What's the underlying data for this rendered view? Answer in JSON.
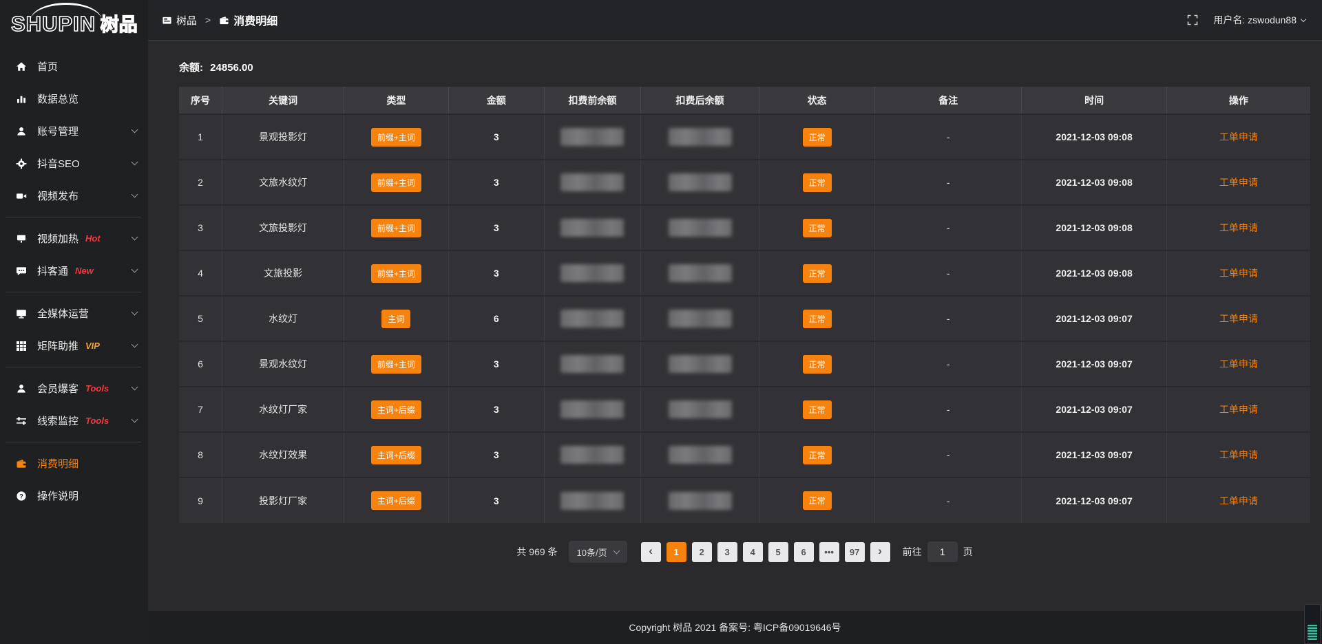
{
  "app": {
    "logo_en": "SHUPIN",
    "logo_cn": "树品"
  },
  "topbar": {
    "breadcrumb_root": "树品",
    "breadcrumb_sep": ">",
    "breadcrumb_current": "消费明细",
    "username_label": "用户名:",
    "username": "zswodun88"
  },
  "sidebar": {
    "items": [
      {
        "key": "home",
        "icon": "home-icon",
        "label": "首页"
      },
      {
        "key": "data-overview",
        "icon": "chart-icon",
        "label": "数据总览"
      },
      {
        "key": "account-manage",
        "icon": "user-icon",
        "label": "账号管理",
        "chevron": true
      },
      {
        "key": "douyin-seo",
        "icon": "gear-icon",
        "label": "抖音SEO",
        "chevron": true
      },
      {
        "key": "video-publish",
        "icon": "video-icon",
        "label": "视频发布",
        "chevron": true,
        "divider_after": true
      },
      {
        "key": "video-heat",
        "icon": "heat-icon",
        "label": "视频加热",
        "tag": "Hot",
        "tag_color": "#f5383d",
        "chevron": true
      },
      {
        "key": "douketong",
        "icon": "chat-icon",
        "label": "抖客通",
        "tag": "New",
        "tag_color": "#f5383d",
        "chevron": true,
        "divider_after": true
      },
      {
        "key": "all-media",
        "icon": "monitor-icon",
        "label": "全媒体运营",
        "chevron": true
      },
      {
        "key": "matrix-boost",
        "icon": "grid-icon",
        "label": "矩阵助推",
        "tag": "VIP",
        "tag_color": "#f0a43c",
        "chevron": true,
        "divider_after": true
      },
      {
        "key": "member-burst",
        "icon": "member-icon",
        "label": "会员爆客",
        "tag": "Tools",
        "tag_color": "#f5383d",
        "chevron": true
      },
      {
        "key": "lead-monitor",
        "icon": "sliders-icon",
        "label": "线索监控",
        "tag": "Tools",
        "tag_color": "#f5383d",
        "chevron": true,
        "divider_after": true
      },
      {
        "key": "consume-detail",
        "icon": "wallet-icon",
        "label": "消费明细",
        "active": true
      },
      {
        "key": "help",
        "icon": "question-icon",
        "label": "操作说明"
      }
    ]
  },
  "balance": {
    "label": "余额:",
    "value": "24856.00"
  },
  "table": {
    "headers": [
      "序号",
      "关键词",
      "类型",
      "金额",
      "扣费前余额",
      "扣费后余额",
      "状态",
      "备注",
      "时间",
      "操作"
    ],
    "rows": [
      {
        "seq": "1",
        "keyword": "景观投影灯",
        "type": "前缀+主词",
        "amount": "3",
        "status": "正常",
        "remark": "-",
        "time": "2021-12-03 09:08",
        "action": "工单申请"
      },
      {
        "seq": "2",
        "keyword": "文旅水纹灯",
        "type": "前缀+主词",
        "amount": "3",
        "status": "正常",
        "remark": "-",
        "time": "2021-12-03 09:08",
        "action": "工单申请"
      },
      {
        "seq": "3",
        "keyword": "文旅投影灯",
        "type": "前缀+主词",
        "amount": "3",
        "status": "正常",
        "remark": "-",
        "time": "2021-12-03 09:08",
        "action": "工单申请"
      },
      {
        "seq": "4",
        "keyword": "文旅投影",
        "type": "前缀+主词",
        "amount": "3",
        "status": "正常",
        "remark": "-",
        "time": "2021-12-03 09:08",
        "action": "工单申请"
      },
      {
        "seq": "5",
        "keyword": "水纹灯",
        "type": "主词",
        "amount": "6",
        "status": "正常",
        "remark": "-",
        "time": "2021-12-03 09:07",
        "action": "工单申请"
      },
      {
        "seq": "6",
        "keyword": "景观水纹灯",
        "type": "前缀+主词",
        "amount": "3",
        "status": "正常",
        "remark": "-",
        "time": "2021-12-03 09:07",
        "action": "工单申请"
      },
      {
        "seq": "7",
        "keyword": "水纹灯厂家",
        "type": "主词+后缀",
        "amount": "3",
        "status": "正常",
        "remark": "-",
        "time": "2021-12-03 09:07",
        "action": "工单申请"
      },
      {
        "seq": "8",
        "keyword": "水纹灯效果",
        "type": "主词+后缀",
        "amount": "3",
        "status": "正常",
        "remark": "-",
        "time": "2021-12-03 09:07",
        "action": "工单申请"
      },
      {
        "seq": "9",
        "keyword": "投影灯厂家",
        "type": "主词+后缀",
        "amount": "3",
        "status": "正常",
        "remark": "-",
        "time": "2021-12-03 09:07",
        "action": "工单申请"
      }
    ]
  },
  "pagination": {
    "total_label": "共 969 条",
    "page_size_label": "10条/页",
    "prev_label": "‹",
    "next_label": "›",
    "pages": [
      "1",
      "2",
      "3",
      "4",
      "5",
      "6",
      "•••",
      "97"
    ],
    "active_index": 0,
    "goto_label": "前往",
    "goto_value": "1",
    "goto_suffix": "页"
  },
  "footer": {
    "copyright": "Copyright 树品 2021 备案号: 粤ICP备09019646号"
  },
  "colors": {
    "accent": "#f7820d",
    "tag_hot": "#f5383d",
    "tag_vip": "#f0a43c",
    "sidebar_bg": "#1f2022",
    "content_bg": "#2a2a2c"
  }
}
